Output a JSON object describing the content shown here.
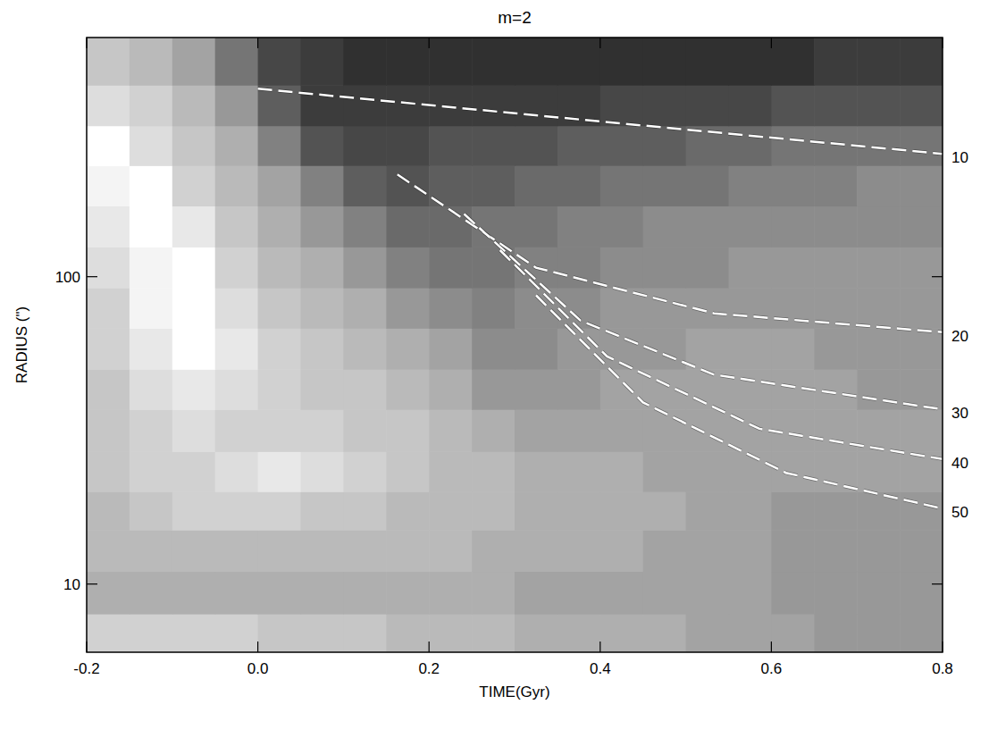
{
  "chart_data": {
    "type": "heatmap",
    "title": "m=2",
    "x_label": "TIME(Gyr)",
    "y_label": "RADIUS (\")",
    "log": "y",
    "xlim": [
      -0.2,
      0.8
    ],
    "xticks": [
      -0.2,
      {
        "value": 0,
        "label": "0.0"
      },
      0.2,
      0.4,
      0.6,
      0.8
    ],
    "ylim": [
      6,
      600
    ],
    "yticks": [
      10,
      100
    ],
    "x_edges": [
      -0.2,
      -0.15,
      -0.1,
      -0.05,
      0,
      0.05,
      0.1,
      0.15,
      0.2,
      0.25,
      0.3,
      0.35,
      0.4,
      0.45,
      0.5,
      0.55,
      0.6,
      0.65,
      0.7,
      0.75,
      0.8
    ],
    "y_edges": [
      6,
      8,
      11,
      15,
      20,
      27,
      37,
      50,
      68,
      92,
      125,
      170,
      230,
      310,
      420,
      600
    ],
    "cells": [
      [
        0.2,
        0.2,
        0.2,
        0.2,
        0.25,
        0.25,
        0.25,
        0.3,
        0.3,
        0.3,
        0.35,
        0.35,
        0.35,
        0.35,
        0.4,
        0.4,
        0.4,
        0.45,
        0.45,
        0.45
      ],
      [
        0.35,
        0.35,
        0.35,
        0.35,
        0.35,
        0.35,
        0.35,
        0.35,
        0.35,
        0.35,
        0.4,
        0.4,
        0.4,
        0.4,
        0.4,
        0.4,
        0.45,
        0.45,
        0.45,
        0.45
      ],
      [
        0.3,
        0.3,
        0.3,
        0.3,
        0.3,
        0.3,
        0.3,
        0.3,
        0.3,
        0.35,
        0.35,
        0.35,
        0.35,
        0.4,
        0.4,
        0.4,
        0.45,
        0.45,
        0.45,
        0.45
      ],
      [
        0.3,
        0.25,
        0.2,
        0.2,
        0.2,
        0.25,
        0.25,
        0.3,
        0.3,
        0.3,
        0.35,
        0.35,
        0.35,
        0.35,
        0.4,
        0.4,
        0.45,
        0.45,
        0.45,
        0.45
      ],
      [
        0.25,
        0.2,
        0.2,
        0.15,
        0.1,
        0.15,
        0.2,
        0.25,
        0.3,
        0.3,
        0.35,
        0.35,
        0.35,
        0.4,
        0.4,
        0.4,
        0.4,
        0.4,
        0.4,
        0.4
      ],
      [
        0.25,
        0.2,
        0.15,
        0.2,
        0.2,
        0.2,
        0.25,
        0.25,
        0.3,
        0.35,
        0.4,
        0.4,
        0.4,
        0.4,
        0.4,
        0.4,
        0.4,
        0.4,
        0.4,
        0.4
      ],
      [
        0.25,
        0.15,
        0.1,
        0.15,
        0.2,
        0.25,
        0.25,
        0.3,
        0.35,
        0.45,
        0.45,
        0.45,
        0.4,
        0.4,
        0.4,
        0.4,
        0.4,
        0.4,
        0.45,
        0.45
      ],
      [
        0.2,
        0.1,
        0.0,
        0.1,
        0.2,
        0.25,
        0.3,
        0.35,
        0.4,
        0.5,
        0.5,
        0.45,
        0.45,
        0.45,
        0.4,
        0.4,
        0.4,
        0.45,
        0.45,
        0.45
      ],
      [
        0.2,
        0.05,
        0.0,
        0.15,
        0.25,
        0.3,
        0.35,
        0.45,
        0.5,
        0.55,
        0.5,
        0.5,
        0.45,
        0.45,
        0.45,
        0.45,
        0.45,
        0.45,
        0.45,
        0.45
      ],
      [
        0.15,
        0.05,
        0.0,
        0.2,
        0.3,
        0.35,
        0.45,
        0.55,
        0.6,
        0.6,
        0.55,
        0.55,
        0.5,
        0.5,
        0.5,
        0.45,
        0.45,
        0.45,
        0.45,
        0.45
      ],
      [
        0.1,
        0.0,
        0.1,
        0.25,
        0.35,
        0.45,
        0.55,
        0.65,
        0.65,
        0.6,
        0.6,
        0.55,
        0.55,
        0.5,
        0.5,
        0.5,
        0.5,
        0.5,
        0.5,
        0.5
      ],
      [
        0.05,
        0.0,
        0.2,
        0.3,
        0.4,
        0.55,
        0.7,
        0.75,
        0.7,
        0.7,
        0.65,
        0.65,
        0.6,
        0.6,
        0.6,
        0.55,
        0.55,
        0.55,
        0.5,
        0.5
      ],
      [
        0.0,
        0.15,
        0.25,
        0.35,
        0.55,
        0.75,
        0.8,
        0.8,
        0.75,
        0.75,
        0.75,
        0.7,
        0.7,
        0.7,
        0.65,
        0.65,
        0.6,
        0.6,
        0.6,
        0.6
      ],
      [
        0.15,
        0.2,
        0.3,
        0.45,
        0.7,
        0.85,
        0.85,
        0.85,
        0.85,
        0.85,
        0.85,
        0.85,
        0.8,
        0.8,
        0.8,
        0.8,
        0.75,
        0.75,
        0.75,
        0.75
      ],
      [
        0.25,
        0.3,
        0.4,
        0.6,
        0.8,
        0.85,
        0.9,
        0.9,
        0.9,
        0.9,
        0.9,
        0.9,
        0.9,
        0.9,
        0.9,
        0.9,
        0.9,
        0.85,
        0.85,
        0.85
      ]
    ],
    "series": [
      {
        "name": "10",
        "color": "#ffffff",
        "line_style": "dashed",
        "x": [
          0.0,
          0.4,
          0.8
        ],
        "values": [
          409,
          320,
          251
        ]
      },
      {
        "name": "20",
        "color": "#ffffff",
        "line_style": "dashed",
        "x": [
          0.163,
          0.325,
          0.533,
          0.8
        ],
        "values": [
          215,
          107,
          76,
          66
        ]
      },
      {
        "name": "30",
        "color": "#ffffff",
        "line_style": "dashed",
        "x": [
          0.241,
          0.377,
          0.533,
          0.8
        ],
        "values": [
          160,
          72,
          48,
          37
        ]
      },
      {
        "name": "40",
        "color": "#ffffff",
        "line_style": "dashed",
        "x": [
          0.283,
          0.408,
          0.586,
          0.8
        ],
        "values": [
          122,
          55,
          32,
          25.5
        ]
      },
      {
        "name": "50",
        "color": "#ffffff",
        "line_style": "dashed",
        "x": [
          0.325,
          0.45,
          0.617,
          0.8
        ],
        "values": [
          87,
          39,
          23,
          17.6
        ]
      }
    ]
  }
}
